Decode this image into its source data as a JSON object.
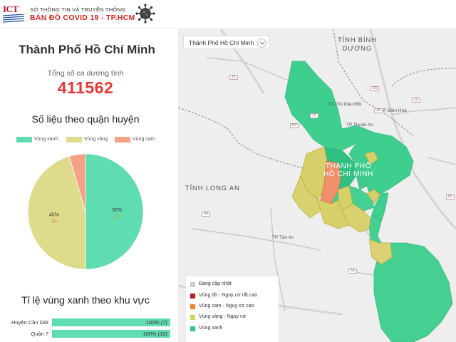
{
  "header": {
    "logo_text": "ICT",
    "org_name": "SỞ THÔNG TIN VÀ TRUYỀN THÔNG",
    "app_name": "BẢN ĐỒ  COVID 19 - TP.HCM"
  },
  "summary": {
    "city_title": "Thành Phố Hồ Chí Minh",
    "total_label": "Tổng số ca dương tính",
    "total_value": "411562"
  },
  "district_section": {
    "title": "Số liệu theo quận huyện",
    "legend": [
      {
        "label": "Vùng xanh",
        "color": "#5fdcb0"
      },
      {
        "label": "Vùng vàng",
        "color": "#dedc8c"
      },
      {
        "label": "Vùng cam",
        "color": "#f4a185"
      }
    ]
  },
  "chart_data": {
    "type": "pie",
    "slices": [
      {
        "name": "Vùng xanh",
        "percent_label": "50%",
        "count": 11,
        "color": "#5fdcb0",
        "count_color": "#c49a1a"
      },
      {
        "name": "Vùng vàng",
        "percent_label": "45%",
        "count": 10,
        "color": "#dedc8c",
        "count_color": "#e0851a"
      },
      {
        "name": "Vùng cam",
        "percent_label": "",
        "count": 1,
        "color": "#f4a185",
        "count_color": "#e0851a"
      }
    ],
    "legend_position": "top"
  },
  "ratio_section": {
    "title": "Tỉ lệ vùng xanh theo khu vực",
    "bars": [
      {
        "label": "Huyện Cần Giờ",
        "value_text": "100% (7)",
        "percent": 100
      },
      {
        "label": "Quận 7",
        "value_text": "100% (10)",
        "percent": 100
      }
    ]
  },
  "map": {
    "selector_value": "Thành Phố Hồ Chí Minh",
    "places": {
      "binh_duong": "TỈNH BÌNH\nDƯƠNG",
      "long_an": "TỈNH LONG AN",
      "hcm": "THÀNH PHỐ\nHỒ CHÍ MINH",
      "thu_dau_mot": "TP Thủ Dầu Một",
      "bien_hoa": "TP Biên Hòa",
      "thuan_an": "TP Thuận An",
      "tan_an": "TP Tân An"
    },
    "roads": [
      "22",
      "13",
      "1A",
      "N2",
      "N2",
      "50",
      "13",
      "1A",
      "60"
    ],
    "legend": [
      {
        "label": "Đang cập nhật",
        "color": "#cccccc"
      },
      {
        "label": "Vùng đỏ - Nguy cơ rất cao",
        "color": "#c0171b"
      },
      {
        "label": "Vùng cam - Nguy cơ cao",
        "color": "#f07f2e"
      },
      {
        "label": "Vùng vàng - Nguy cơ",
        "color": "#d8d266"
      },
      {
        "label": "Vùng xanh",
        "color": "#2fc889"
      }
    ]
  }
}
